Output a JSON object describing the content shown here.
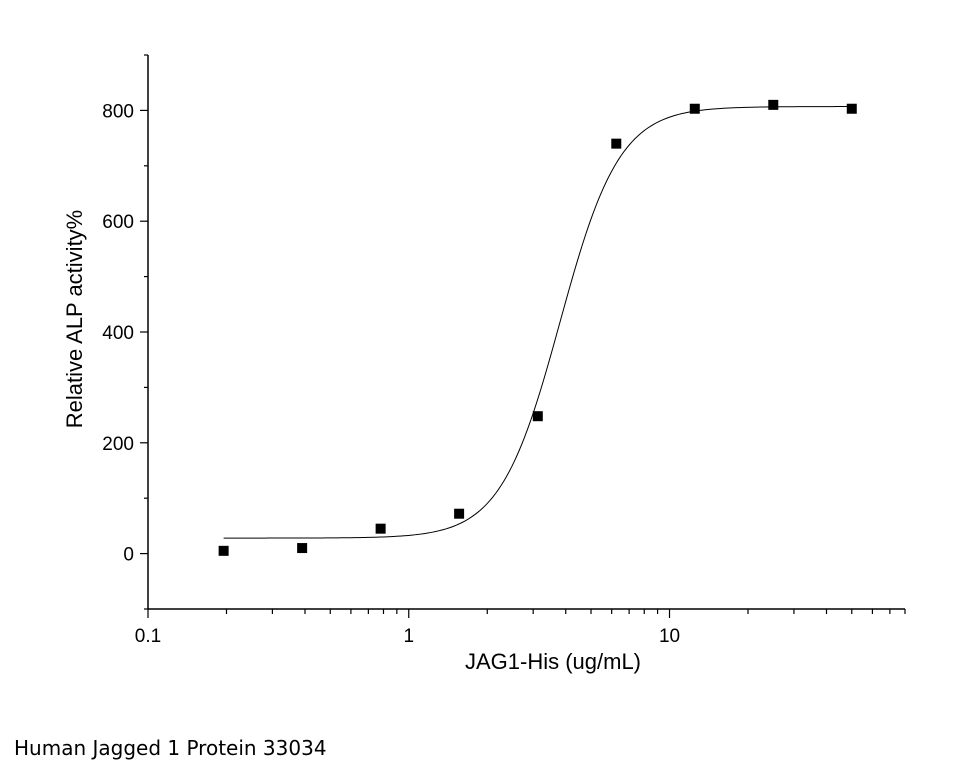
{
  "caption": "Human Jagged 1 Protein 33034",
  "chart_data": {
    "type": "scatter",
    "xlabel": "JAG1-His (ug/mL)",
    "ylabel": "Relative ALP activity%",
    "xscale": "log",
    "xlim": [
      0.1,
      80
    ],
    "ylim": [
      -100,
      900
    ],
    "xticks": [
      0.1,
      1,
      10
    ],
    "xtick_labels": [
      "0.1",
      "1",
      "10"
    ],
    "yticks": [
      0,
      200,
      400,
      600,
      800
    ],
    "ytick_labels": [
      "0",
      "200",
      "400",
      "600",
      "800"
    ],
    "grid": false,
    "legend": "none",
    "points": {
      "x": [
        0.195,
        0.39,
        0.78,
        1.56,
        3.125,
        6.25,
        12.5,
        25,
        50
      ],
      "y": [
        5,
        10,
        45,
        72,
        248,
        740,
        803,
        810,
        803
      ]
    },
    "fit": {
      "model": "4PL",
      "bottom": 28,
      "top": 807,
      "ec50": 3.8,
      "hill": 3.8,
      "x_range": [
        0.195,
        50
      ]
    }
  }
}
